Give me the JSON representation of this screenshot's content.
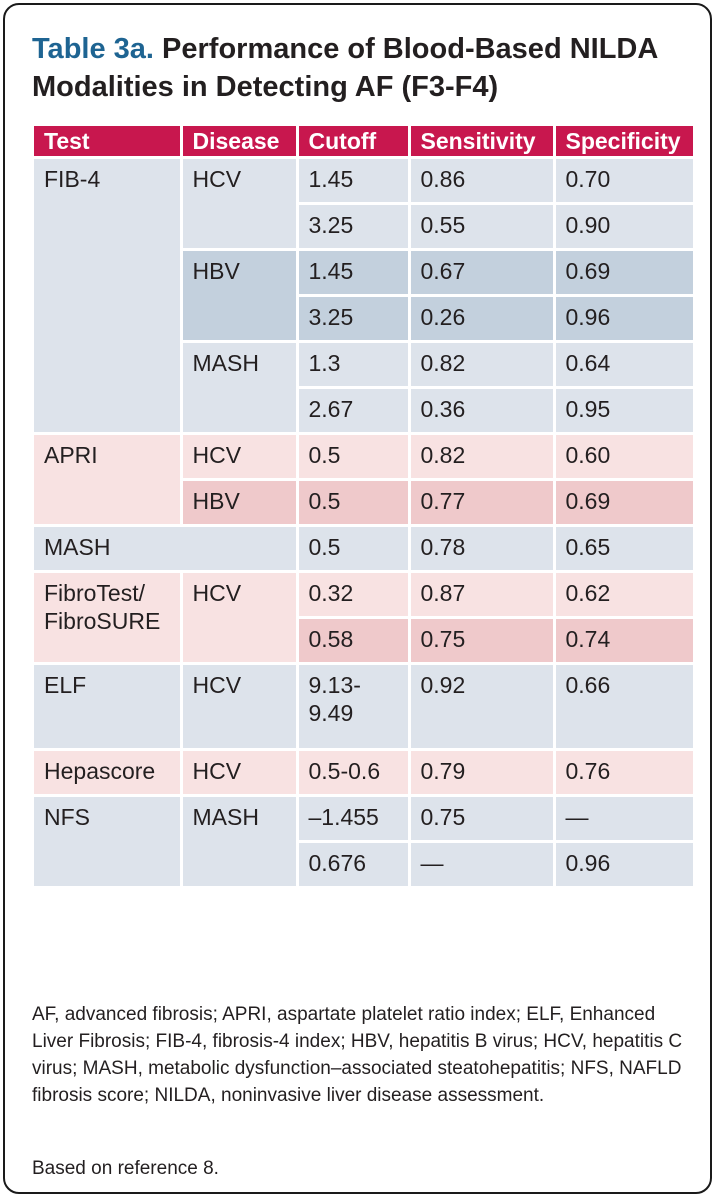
{
  "title": {
    "prefix": "Table 3a.",
    "text": " Performance of Blood-Based NILDA Modalities in Detecting AF (F3-F4)"
  },
  "headers": [
    "Test",
    "Disease",
    "Cutoff",
    "Sensitivity",
    "Specificity"
  ],
  "groups": {
    "fib4": {
      "test": "FIB-4",
      "hcv": {
        "disease": "HCV",
        "rows": [
          {
            "cutoff": "1.45",
            "sensitivity": "0.86",
            "specificity": "0.70"
          },
          {
            "cutoff": "3.25",
            "sensitivity": "0.55",
            "specificity": "0.90"
          }
        ]
      },
      "hbv": {
        "disease": "HBV",
        "rows": [
          {
            "cutoff": "1.45",
            "sensitivity": "0.67",
            "specificity": "0.69"
          },
          {
            "cutoff": "3.25",
            "sensitivity": "0.26",
            "specificity": "0.96"
          }
        ]
      },
      "mash": {
        "disease": "MASH",
        "rows": [
          {
            "cutoff": "1.3",
            "sensitivity": "0.82",
            "specificity": "0.64"
          },
          {
            "cutoff": "2.67",
            "sensitivity": "0.36",
            "specificity": "0.95"
          }
        ]
      }
    },
    "apri": {
      "test": "APRI",
      "rows": [
        {
          "disease": "HCV",
          "cutoff": "0.5",
          "sensitivity": "0.82",
          "specificity": "0.60"
        },
        {
          "disease": "HBV",
          "cutoff": "0.5",
          "sensitivity": "0.77",
          "specificity": "0.69"
        }
      ]
    },
    "mash_row": {
      "test": "MASH",
      "cutoff": "0.5",
      "sensitivity": "0.78",
      "specificity": "0.65"
    },
    "fibrotest": {
      "test_line1": "FibroTest/",
      "test_line2": "FibroSURE",
      "disease": "HCV",
      "rows": [
        {
          "cutoff": "0.32",
          "sensitivity": "0.87",
          "specificity": "0.62"
        },
        {
          "cutoff": "0.58",
          "sensitivity": "0.75",
          "specificity": "0.74"
        }
      ]
    },
    "elf": {
      "test": "ELF",
      "disease": "HCV",
      "cutoff_line1": "9.13-",
      "cutoff_line2": "9.49",
      "sensitivity": "0.92",
      "specificity": "0.66"
    },
    "hepascore": {
      "test": "Hepascore",
      "disease": "HCV",
      "cutoff": "0.5-0.6",
      "sensitivity": "0.79",
      "specificity": "0.76"
    },
    "nfs": {
      "test": "NFS",
      "disease": "MASH",
      "rows": [
        {
          "cutoff": "–1.455",
          "sensitivity": "0.75",
          "specificity": "—"
        },
        {
          "cutoff": "0.676",
          "sensitivity": "—",
          "specificity": "0.96"
        }
      ]
    }
  },
  "footnote": "AF, advanced fibrosis; APRI, aspartate platelet ratio index; ELF, Enhanced Liver Fibrosis; FIB-4, fibrosis-4 index; HBV, hepatitis B virus; HCV, hepatitis C virus; MASH, metabolic dysfunction–associated steatohepatitis; NFS, NAFLD fibrosis score; NILDA, noninvasive liver disease assessment.",
  "reference": "Based on reference 8."
}
